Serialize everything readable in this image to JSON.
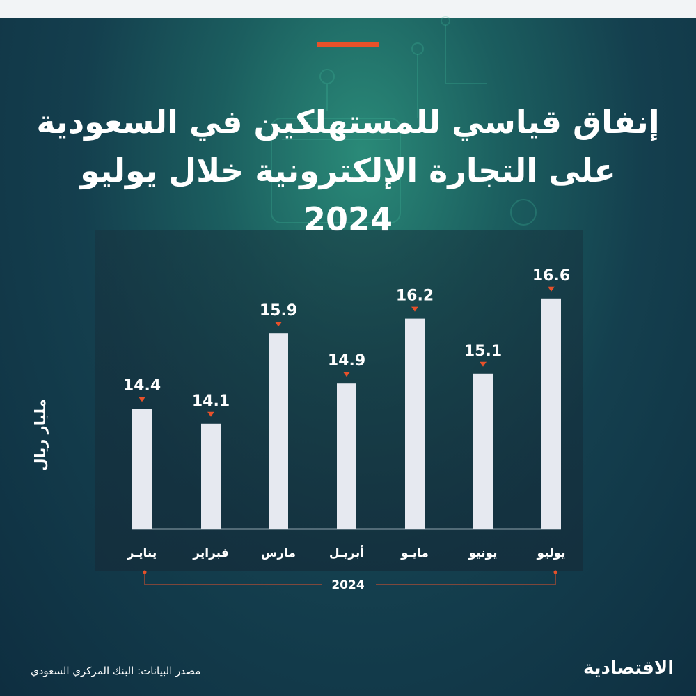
{
  "title": "إنفاق قياسي للمستهلكين في السعودية على التجارة الإلكترونية خلال يوليو 2024",
  "unit_label": "مليار ريال",
  "source": "مصدر البيانات: البنك المركزي السعودي",
  "logo": "الاقتصادية",
  "colors": {
    "accent": "#e8512a",
    "bar": "#e6e9f0",
    "text": "#ffffff"
  },
  "chart_data": {
    "type": "bar",
    "categories": [
      "يناير",
      "فبراير",
      "مارس",
      "أبريل",
      "مايو",
      "يونيو",
      "يوليو"
    ],
    "category_labels": [
      "ينايـر",
      "فبراير",
      "مارس",
      "أبريـل",
      "مايـو",
      "يونيو",
      "يوليو"
    ],
    "values": [
      14.4,
      14.1,
      15.9,
      14.9,
      16.2,
      15.1,
      16.6
    ],
    "value_labels": [
      "14.4",
      "14.1",
      "15.9",
      "14.9",
      "16.2",
      "15.1",
      "16.6"
    ],
    "year_label": "2024",
    "ylim": [
      12,
      17
    ]
  }
}
